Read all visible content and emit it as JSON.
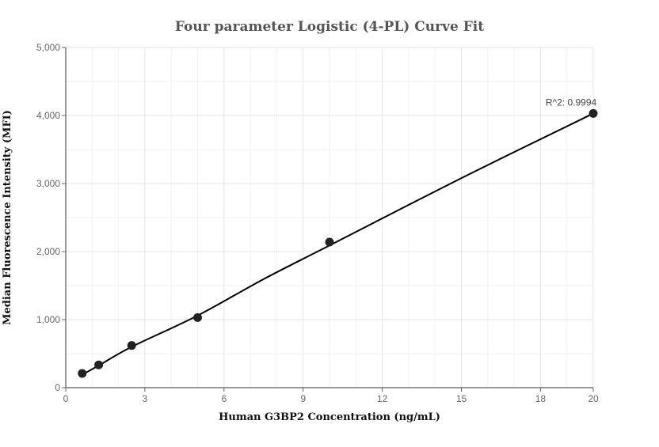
{
  "chart_data": {
    "type": "scatter",
    "title": "Four parameter Logistic (4-PL) Curve Fit",
    "xlabel": "Human G3BP2 Concentration (ng/mL)",
    "ylabel": "Median Fluorescence Intensity (MFI)",
    "xlim": [
      0,
      20
    ],
    "ylim": [
      0,
      5000
    ],
    "x_ticks": [
      "0",
      "3",
      "6",
      "9",
      "12",
      "15",
      "18",
      "20"
    ],
    "x_tick_values": [
      0,
      3,
      6,
      9,
      12,
      15,
      18,
      20
    ],
    "y_ticks": [
      "0",
      "1,000",
      "2,000",
      "3,000",
      "4,000",
      "5,000"
    ],
    "y_tick_values": [
      0,
      1000,
      2000,
      3000,
      4000,
      5000
    ],
    "grid": true,
    "points": [
      {
        "x": 0.625,
        "y": 210
      },
      {
        "x": 1.25,
        "y": 335
      },
      {
        "x": 2.5,
        "y": 620
      },
      {
        "x": 5,
        "y": 1030
      },
      {
        "x": 10,
        "y": 2140
      },
      {
        "x": 20,
        "y": 4030
      }
    ],
    "curve": {
      "x": [
        0.625,
        1.25,
        2.5,
        5,
        7.5,
        10,
        15,
        20
      ],
      "y": [
        190,
        325,
        600,
        1060,
        1595,
        2090,
        3080,
        4030
      ]
    },
    "annotation": "R^2: 0.9994",
    "colors": {
      "points": "#222222",
      "curve": "#000000",
      "grid": "#e6e6e6"
    }
  }
}
